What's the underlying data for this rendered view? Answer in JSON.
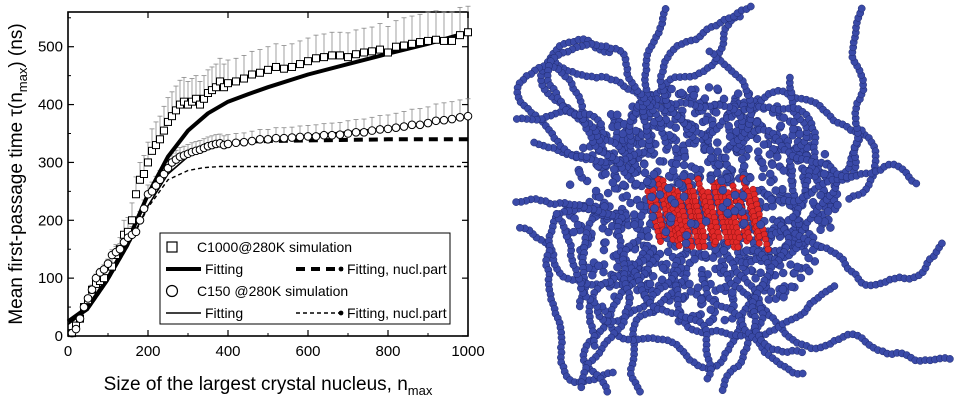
{
  "chart_data": {
    "type": "scatter",
    "xlabel": "Size of the largest crystal nucleus, n",
    "xlabel_sub": "max",
    "ylabel": "Mean first-passage time τ(n",
    "ylabel_sub": "max",
    "ylabel_tail": ") (ns)",
    "xlim": [
      0,
      1000
    ],
    "ylim": [
      0,
      560
    ],
    "xticks": [
      0,
      200,
      400,
      600,
      800,
      1000
    ],
    "yticks": [
      0,
      100,
      200,
      300,
      400,
      500
    ],
    "xtick_labels": [
      "0",
      "200",
      "400",
      "600",
      "800",
      "1000"
    ],
    "ytick_labels": [
      "0",
      "100",
      "200",
      "300",
      "400",
      "500"
    ],
    "grid": false,
    "legend_position": "bottom-right",
    "series": [
      {
        "name": "C1000@280K simulation",
        "kind": "scatter",
        "marker": "square",
        "x": [
          10,
          20,
          30,
          40,
          50,
          60,
          70,
          80,
          90,
          100,
          110,
          120,
          130,
          140,
          150,
          160,
          170,
          180,
          190,
          200,
          210,
          220,
          230,
          240,
          250,
          260,
          270,
          280,
          290,
          300,
          310,
          320,
          330,
          340,
          350,
          360,
          370,
          380,
          390,
          400,
          420,
          440,
          460,
          480,
          500,
          520,
          540,
          560,
          580,
          600,
          620,
          640,
          660,
          680,
          700,
          720,
          740,
          760,
          780,
          800,
          820,
          840,
          860,
          880,
          900,
          920,
          940,
          960,
          980,
          1000
        ],
        "y": [
          5,
          18,
          30,
          50,
          62,
          80,
          90,
          95,
          100,
          120,
          120,
          140,
          150,
          175,
          180,
          200,
          245,
          270,
          280,
          300,
          320,
          330,
          340,
          355,
          370,
          380,
          390,
          400,
          405,
          400,
          405,
          410,
          400,
          410,
          420,
          425,
          430,
          440,
          430,
          437,
          440,
          445,
          452,
          455,
          460,
          465,
          462,
          465,
          470,
          475,
          480,
          482,
          485,
          485,
          482,
          487,
          490,
          492,
          495,
          490,
          500,
          502,
          505,
          508,
          510,
          512,
          510,
          510,
          520,
          525
        ],
        "error": [
          5,
          5,
          6,
          6,
          8,
          8,
          10,
          10,
          12,
          12,
          15,
          18,
          20,
          25,
          25,
          30,
          30,
          30,
          32,
          35,
          38,
          40,
          40,
          42,
          42,
          42,
          42,
          42,
          42,
          40,
          40,
          40,
          40,
          40,
          40,
          40,
          40,
          40,
          40,
          40,
          40,
          40,
          40,
          40,
          40,
          40,
          40,
          40,
          40,
          40,
          40,
          40,
          40,
          40,
          42,
          42,
          42,
          42,
          45,
          45,
          45,
          48,
          48,
          48,
          50,
          50,
          50,
          50,
          48,
          45
        ]
      },
      {
        "name": "Fitting",
        "kind": "line",
        "style": "thick-solid",
        "x": [
          0,
          50,
          100,
          150,
          200,
          250,
          300,
          350,
          400,
          450,
          500,
          600,
          700,
          800,
          900,
          1000
        ],
        "y": [
          25,
          50,
          100,
          165,
          245,
          310,
          355,
          385,
          405,
          418,
          430,
          452,
          470,
          488,
          505,
          525
        ]
      },
      {
        "name": "Fitting, nucl.part",
        "kind": "line",
        "style": "thick-dashed",
        "x": [
          340,
          400,
          450,
          500,
          600,
          700,
          800,
          900,
          1000
        ],
        "y": [
          330,
          333,
          336,
          337,
          338,
          339,
          340,
          340,
          340
        ]
      },
      {
        "name": "C150  @280K simulation",
        "kind": "scatter",
        "marker": "circle",
        "x": [
          10,
          20,
          30,
          40,
          50,
          60,
          70,
          80,
          90,
          100,
          110,
          120,
          130,
          140,
          150,
          160,
          170,
          180,
          190,
          200,
          210,
          220,
          230,
          240,
          250,
          260,
          270,
          280,
          290,
          300,
          310,
          320,
          330,
          340,
          350,
          360,
          370,
          380,
          390,
          400,
          420,
          440,
          460,
          480,
          500,
          520,
          540,
          560,
          580,
          600,
          620,
          640,
          660,
          680,
          700,
          720,
          740,
          760,
          780,
          800,
          820,
          840,
          860,
          880,
          900,
          920,
          940,
          960,
          980,
          1000
        ],
        "y": [
          5,
          12,
          30,
          50,
          65,
          80,
          100,
          110,
          115,
          125,
          140,
          145,
          150,
          162,
          170,
          175,
          180,
          200,
          220,
          245,
          250,
          260,
          270,
          280,
          290,
          300,
          305,
          310,
          312,
          315,
          318,
          320,
          322,
          325,
          328,
          330,
          332,
          333,
          330,
          332,
          334,
          335,
          337,
          340,
          340,
          342,
          342,
          343,
          344,
          345,
          345,
          347,
          347,
          348,
          350,
          352,
          352,
          355,
          357,
          358,
          360,
          362,
          365,
          365,
          368,
          372,
          373,
          375,
          378,
          380
        ],
        "error": [
          4,
          4,
          5,
          5,
          6,
          6,
          7,
          7,
          8,
          8,
          9,
          10,
          10,
          12,
          12,
          14,
          14,
          15,
          15,
          16,
          16,
          16,
          16,
          16,
          16,
          16,
          16,
          16,
          16,
          16,
          16,
          16,
          16,
          16,
          16,
          16,
          16,
          16,
          16,
          16,
          16,
          16,
          17,
          17,
          17,
          18,
          18,
          18,
          19,
          19,
          20,
          20,
          21,
          21,
          22,
          22,
          23,
          23,
          24,
          24,
          25,
          26,
          27,
          28,
          28,
          29,
          30,
          30,
          30,
          30
        ]
      },
      {
        "name": "Fitting",
        "kind": "line",
        "style": "thin-solid",
        "x": [
          0,
          50,
          100,
          150,
          200,
          250,
          300,
          350,
          400,
          450,
          500,
          600,
          700,
          800,
          900,
          1000
        ],
        "y": [
          20,
          45,
          95,
          155,
          225,
          280,
          310,
          325,
          332,
          336,
          340,
          347,
          353,
          360,
          368,
          378
        ]
      },
      {
        "name": "Fitting, nucl.part",
        "kind": "line",
        "style": "thin-dashed",
        "x": [
          0,
          50,
          100,
          150,
          200,
          250,
          300,
          340,
          380,
          400,
          450,
          500,
          600,
          700,
          800,
          900,
          1000
        ],
        "y": [
          20,
          45,
          95,
          155,
          222,
          270,
          286,
          291,
          293,
          293,
          293,
          293,
          293,
          293,
          293,
          293,
          293
        ]
      }
    ],
    "legend": [
      {
        "label": "C1000@280K simulation",
        "marker": "square"
      },
      {
        "label": "Fitting",
        "line": "thick-solid"
      },
      {
        "label": "Fitting, nucl.part",
        "line": "thick-dashed"
      },
      {
        "label": "C150  @280K simulation",
        "marker": "circle"
      },
      {
        "label": "Fitting",
        "line": "thin-solid"
      },
      {
        "label": "Fitting, nucl.part",
        "line": "thin-dashed"
      }
    ],
    "colors": {
      "axis": "#000000",
      "marker": "#000000",
      "error_bar": "#888888"
    }
  },
  "molecule_image": {
    "description_colors": {
      "chain": "#3a4aa8",
      "core": "#e02828"
    }
  }
}
